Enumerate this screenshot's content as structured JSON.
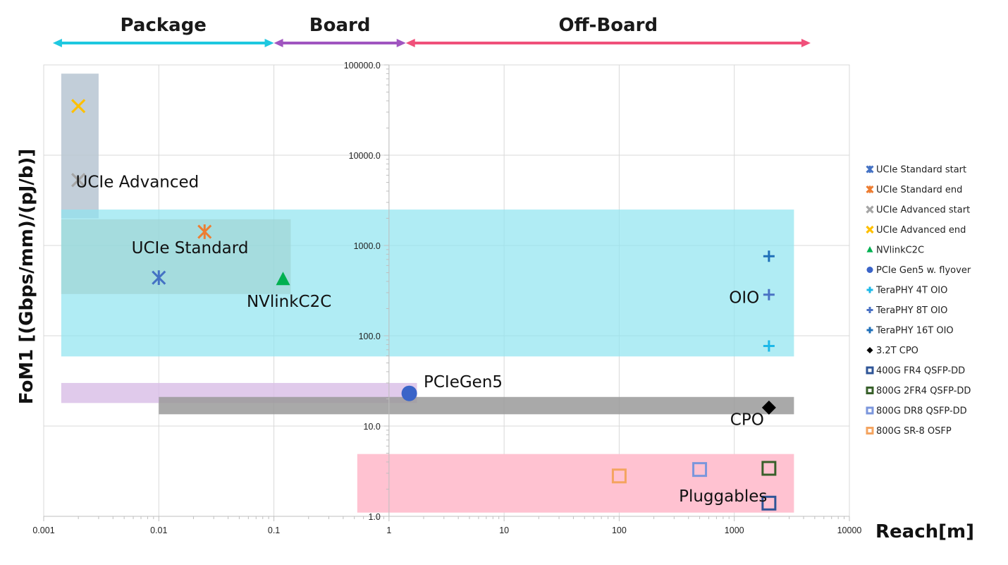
{
  "chart_data": {
    "type": "scatter",
    "xscale": "log",
    "yscale": "log",
    "xlim": [
      0.001,
      10000
    ],
    "ylim": [
      1.0,
      100000.0
    ],
    "xlabel": "Reach[m]",
    "ylabel": "FoM1 [(Gbps/mm)/(pJ/b)]",
    "x_ticks": [
      0.001,
      0.01,
      0.1,
      1,
      10,
      100,
      1000,
      10000
    ],
    "x_tick_labels": [
      "0.001",
      "0.01",
      "0.1",
      "1",
      "10",
      "100",
      "1000",
      "10000"
    ],
    "y_ticks": [
      1,
      10,
      100,
      1000,
      10000,
      100000
    ],
    "y_tick_labels": [
      "1.0",
      "10.0",
      "100.0",
      "1000.0",
      "10000.0",
      "100000.0"
    ],
    "grid": true,
    "legend_position": "right",
    "sections": [
      {
        "label": "Package",
        "x_from": 0.0012,
        "x_to": 0.1,
        "color": "#1ec8e0"
      },
      {
        "label": "Board",
        "x_from": 0.1,
        "x_to": 1.4,
        "color": "#a055c0"
      },
      {
        "label": "Off-Board",
        "x_from": 1.4,
        "x_to": 4600,
        "color": "#f0507a"
      }
    ],
    "regions": [
      {
        "label": "UCIe Advanced",
        "x": [
          0.00142,
          0.003
        ],
        "y": [
          2000,
          80000
        ],
        "color": "#b7c6d2",
        "opacity": 0.85,
        "label_x": 0.0019,
        "label_y": 4400
      },
      {
        "label": "OIO",
        "x": [
          0.00142,
          3300
        ],
        "y": [
          59,
          2500
        ],
        "color": "#8ee4ef",
        "opacity": 0.7,
        "label_x": 900,
        "label_y": 230
      },
      {
        "label": "UCIe Standard",
        "x": [
          0.00142,
          0.14
        ],
        "y": [
          290,
          1950
        ],
        "color": "#9ccfcc",
        "opacity": 0.55,
        "label_x": 0.0058,
        "label_y": 820
      },
      {
        "label": "PCIeGen5",
        "x": [
          0.00142,
          1.75
        ],
        "y": [
          18,
          30
        ],
        "color": "#d8bde6",
        "opacity": 0.8,
        "label_x": 2.0,
        "label_y": 27
      },
      {
        "label": "CPO",
        "x": [
          0.01,
          3300
        ],
        "y": [
          13.5,
          21
        ],
        "color": "#9a9a9a",
        "opacity": 0.85,
        "label_x": 920,
        "label_y": 10.3
      },
      {
        "label": "Pluggables",
        "x": [
          0.53,
          3300
        ],
        "y": [
          1.1,
          4.9
        ],
        "color": "#ffc2d1",
        "opacity": 1,
        "label_x": 330,
        "label_y": 1.46
      }
    ],
    "annotations": [
      {
        "text": "NVlinkC2C",
        "x": 0.058,
        "y": 210
      }
    ],
    "series": [
      {
        "name": "UCIe Standard start",
        "marker": "asterisk",
        "color": "#4472c4",
        "points": [
          {
            "x": 0.01,
            "y": 440
          }
        ]
      },
      {
        "name": "UCIe Standard end",
        "marker": "asterisk",
        "color": "#ed7d31",
        "points": [
          {
            "x": 0.025,
            "y": 1420
          }
        ]
      },
      {
        "name": "UCIe Advanced start",
        "marker": "x",
        "color": "#a5a5a5",
        "points": [
          {
            "x": 0.002,
            "y": 5300
          }
        ]
      },
      {
        "name": "UCIe Advanced end",
        "marker": "x",
        "color": "#ffc000",
        "points": [
          {
            "x": 0.002,
            "y": 35000
          }
        ]
      },
      {
        "name": "NVlinkC2C",
        "marker": "triangle",
        "color": "#00b050",
        "points": [
          {
            "x": 0.12,
            "y": 420
          }
        ]
      },
      {
        "name": "PCIe Gen5 w. flyover",
        "marker": "circle",
        "color": "#3a64c8",
        "points": [
          {
            "x": 1.5,
            "y": 23
          }
        ]
      },
      {
        "name": "TeraPHY 4T OIO",
        "marker": "plus",
        "color": "#1cb8e8",
        "points": [
          {
            "x": 2000,
            "y": 77
          }
        ]
      },
      {
        "name": "TeraPHY 8T OIO",
        "marker": "plus",
        "color": "#4a72c4",
        "points": [
          {
            "x": 2000,
            "y": 285
          }
        ]
      },
      {
        "name": "TeraPHY 16T OIO",
        "marker": "plus",
        "color": "#1f6fb8",
        "points": [
          {
            "x": 2000,
            "y": 760
          }
        ]
      },
      {
        "name": "3.2T CPO",
        "marker": "diamond",
        "color": "#000000",
        "points": [
          {
            "x": 2000,
            "y": 16
          }
        ]
      },
      {
        "name": "400G FR4 QSFP-DD",
        "marker": "square",
        "color": "#2f5597",
        "points": [
          {
            "x": 2000,
            "y": 1.4
          }
        ]
      },
      {
        "name": "800G 2FR4 QSFP-DD",
        "marker": "square",
        "color": "#38602a",
        "points": [
          {
            "x": 2000,
            "y": 3.4
          }
        ]
      },
      {
        "name": "800G DR8 QSFP-DD",
        "marker": "square",
        "color": "#7b96dc",
        "points": [
          {
            "x": 500,
            "y": 3.3
          }
        ]
      },
      {
        "name": "800G SR-8 OSFP",
        "marker": "square",
        "color": "#f4a460",
        "points": [
          {
            "x": 100,
            "y": 2.8
          }
        ]
      }
    ]
  }
}
